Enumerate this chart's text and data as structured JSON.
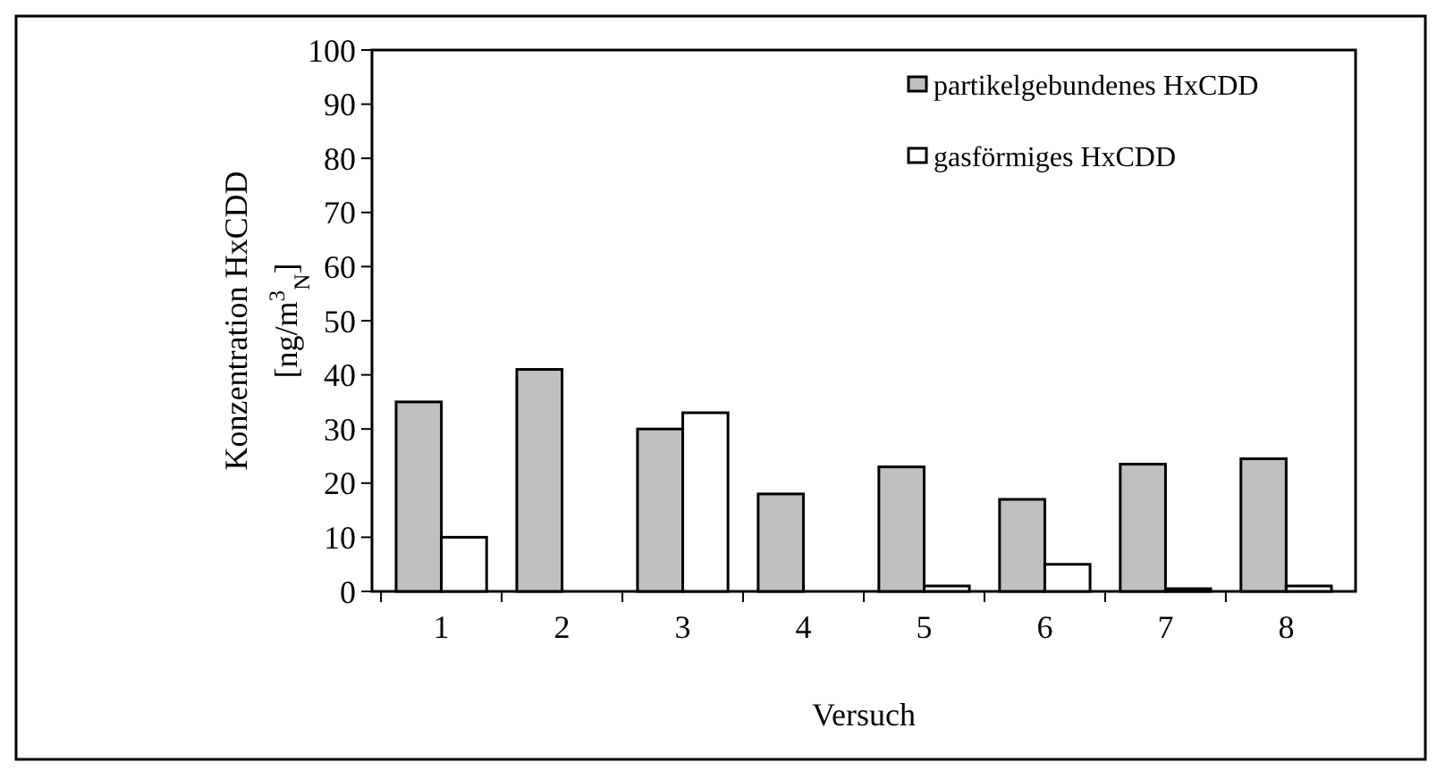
{
  "chart_data": {
    "type": "bar",
    "xlabel": "Versuch",
    "ylabel": "Konzentration HxCDD\n[ng/m$^{3}$$_{N}$]",
    "categories": [
      "1",
      "2",
      "3",
      "4",
      "5",
      "6",
      "7",
      "8"
    ],
    "series": [
      {
        "name": "partikelgebundenes HxCDD",
        "color": "#c0c0c0",
        "values": [
          35,
          41,
          30,
          18,
          23,
          17,
          23.5,
          24.5
        ]
      },
      {
        "name": "gasförmiges HxCDD",
        "color": "#ffffff",
        "values": [
          10,
          0,
          33,
          0,
          1,
          5,
          0.5,
          1
        ]
      }
    ],
    "ylim": [
      0,
      100
    ],
    "yticks": [
      0,
      10,
      20,
      30,
      40,
      50,
      60,
      70,
      80,
      90,
      100
    ],
    "legend": "top right"
  }
}
